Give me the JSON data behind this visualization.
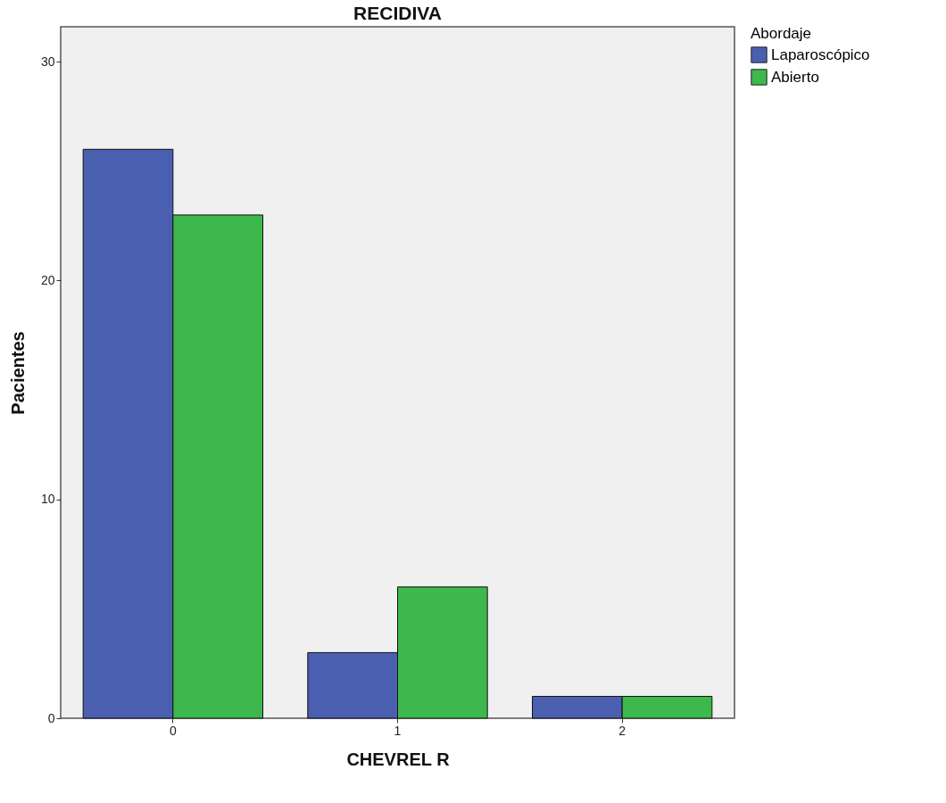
{
  "chart_data": {
    "type": "bar",
    "title": "RECIDIVA",
    "xlabel": "CHEVREL R",
    "ylabel": "Pacientes",
    "legend_title": "Abordaje",
    "categories": [
      "0",
      "1",
      "2"
    ],
    "series": [
      {
        "name": "Laparoscópico",
        "color": "#4a5fb0",
        "values": [
          26,
          3,
          1
        ]
      },
      {
        "name": "Abierto",
        "color": "#3cb84c",
        "values": [
          23,
          6,
          1
        ]
      }
    ],
    "ylim": [
      0,
      31.6
    ],
    "yticks": [
      0,
      10,
      20,
      30
    ],
    "grid": false,
    "legend": "top right"
  }
}
